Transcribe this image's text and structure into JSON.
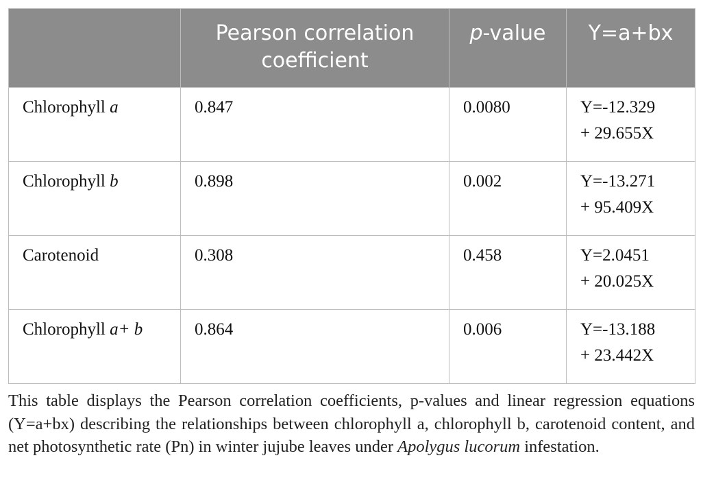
{
  "table": {
    "header": {
      "col1": "Pearson correlation coefficient",
      "col2": [
        "p",
        "-value"
      ],
      "col3": "Y=a+bx"
    },
    "rows": [
      {
        "label": [
          "Chlorophyll",
          "a"
        ],
        "r": "0.847",
        "p": "0.0080",
        "eq": [
          "Y=-12.329",
          "+ 29.655X"
        ]
      },
      {
        "label": [
          "Chlorophyll",
          "b"
        ],
        "r": "0.898",
        "p": "0.002",
        "eq": [
          "Y=-13.271",
          "+ 95.409X"
        ]
      },
      {
        "label": [
          "Carotenoid"
        ],
        "r": "0.308",
        "p": "0.458",
        "eq": [
          "Y=2.0451",
          "+ 20.025X"
        ]
      },
      {
        "label": [
          "Chlorophyll",
          "a+",
          "b"
        ],
        "r": "0.864",
        "p": "0.006",
        "eq": [
          "Y=-13.188",
          "+ 23.442X"
        ]
      }
    ]
  },
  "caption": [
    "This table displays the Pearson correlation coefficients, p-values and linear regression equations (Y=a+bx) describing the relationships between chlorophyll a, chlorophyll b, carotenoid content, and net photosynthetic rate (Pn) in winter jujube leaves under",
    "Apolygus lucorum",
    "infestation."
  ]
}
